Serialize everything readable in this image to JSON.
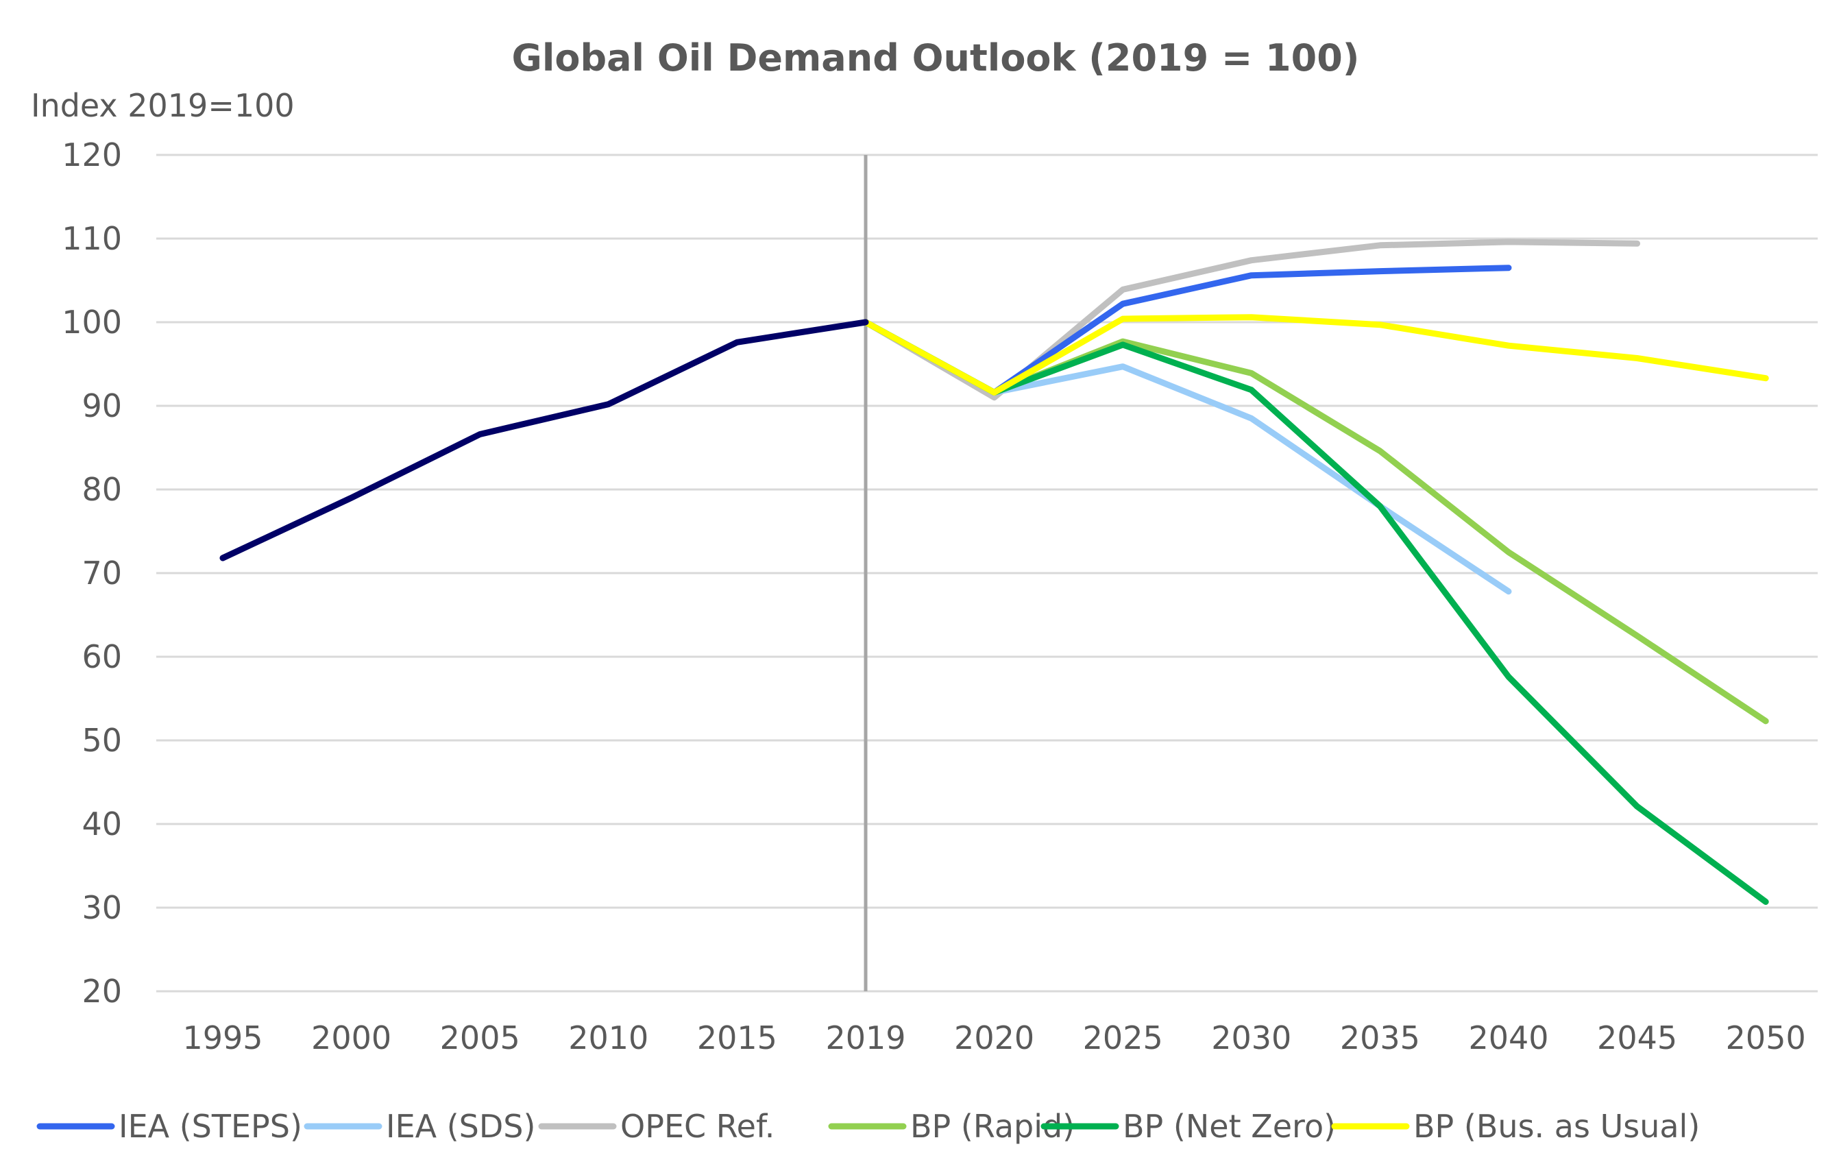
{
  "chart_data": {
    "type": "line",
    "title": "Global Oil Demand Outlook (2019 = 100)",
    "xlabel": "",
    "ylabel": "Index 2019=100",
    "ylim": [
      20,
      120
    ],
    "yticks": [
      120,
      110,
      100,
      90,
      80,
      70,
      60,
      50,
      40,
      30,
      20
    ],
    "categories": [
      "1995",
      "2000",
      "2005",
      "2010",
      "2015",
      "2019",
      "2020",
      "2025",
      "2030",
      "2035",
      "2040",
      "2045",
      "2050"
    ],
    "grid": true,
    "legend_position": "bottom",
    "vertical_marker": "2019",
    "history": {
      "values": [
        71.8,
        79.0,
        86.6,
        90.2,
        97.6,
        100.0,
        null,
        null,
        null,
        null,
        null,
        null,
        null
      ],
      "color": "#000066"
    },
    "series": [
      {
        "name": "IEA (STEPS)",
        "color": "#3366ee",
        "values": [
          null,
          null,
          null,
          null,
          null,
          100.0,
          91.6,
          102.2,
          105.6,
          106.1,
          106.5,
          null,
          null
        ]
      },
      {
        "name": "IEA (SDS)",
        "color": "#99ccf8",
        "values": [
          null,
          null,
          null,
          null,
          null,
          100.0,
          91.6,
          94.7,
          88.5,
          78.0,
          67.8,
          null,
          null
        ]
      },
      {
        "name": "OPEC Ref.",
        "color": "#c0c0c0",
        "values": [
          null,
          null,
          null,
          null,
          null,
          100.0,
          91.0,
          103.9,
          107.4,
          109.2,
          109.6,
          109.4,
          null
        ]
      },
      {
        "name": "BP (Rapid)",
        "color": "#92d050",
        "values": [
          null,
          null,
          null,
          null,
          null,
          100.0,
          91.6,
          97.7,
          93.9,
          84.6,
          72.5,
          62.5,
          52.3
        ]
      },
      {
        "name": "BP (Net Zero)",
        "color": "#00b050",
        "values": [
          null,
          null,
          null,
          null,
          null,
          100.0,
          91.6,
          97.3,
          91.9,
          78.0,
          57.6,
          42.1,
          30.7
        ]
      },
      {
        "name": "BP (Bus. as Usual)",
        "color": "#ffff00",
        "values": [
          null,
          null,
          null,
          null,
          null,
          100.0,
          91.6,
          100.4,
          100.6,
          99.7,
          97.2,
          95.7,
          93.3
        ]
      }
    ]
  }
}
